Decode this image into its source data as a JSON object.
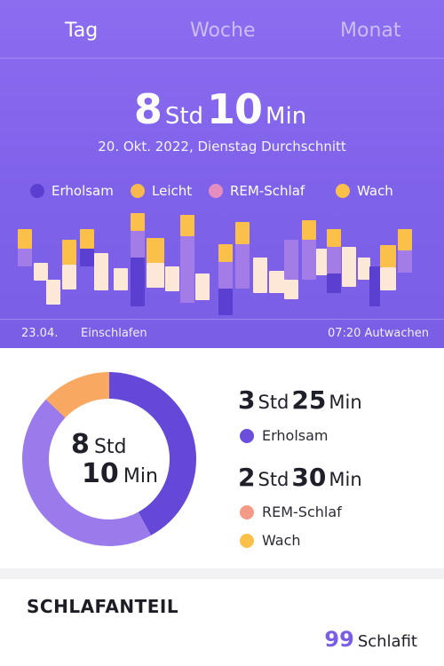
{
  "tabs": [
    {
      "label": "Tag",
      "active": true
    },
    {
      "label": "Woche",
      "active": false
    },
    {
      "label": "Monat",
      "active": false
    }
  ],
  "summary": {
    "hours": "8",
    "hours_unit": "Std",
    "minutes": "10",
    "minutes_unit": "Min",
    "subtitle": "20. Okt. 2022, Dienstag Durchschnitt"
  },
  "legend": [
    {
      "label": "Erholsam",
      "color": "#5b3fd0"
    },
    {
      "label": "Leicht",
      "color": "#f8b84e"
    },
    {
      "label": "REM-Schlaf",
      "color": "#e58dbf"
    },
    {
      "label": "Wach",
      "color": "#fbc04a"
    }
  ],
  "timeline": {
    "start_date": "23.04.",
    "start_label": "Einschlafen",
    "end_label": "07:20 Autwachen"
  },
  "colors": {
    "hero_bg": "#8368ec",
    "erholsam": "#5b3fd0",
    "mid": "#a47ce8",
    "leicht": "#fde7d6",
    "wach": "#fbc04a",
    "donut_purple": "#9b7aec",
    "donut_dark": "#6548d8",
    "donut_orange": "#f9a862",
    "rem": "#f59a86",
    "score": "#7a5ee6"
  },
  "donut": {
    "hours": "8",
    "hours_unit": "Std",
    "minutes": "10",
    "minutes_unit": "Min",
    "segments": [
      {
        "name": "Erholsam",
        "fraction": 0.42,
        "color": "#6548d8"
      },
      {
        "name": "Leicht",
        "fraction": 0.45,
        "color": "#9b7aec"
      },
      {
        "name": "Wach",
        "fraction": 0.13,
        "color": "#f9a862"
      }
    ]
  },
  "stats": [
    {
      "hours": "3",
      "hours_unit": "Std",
      "minutes": "25",
      "minutes_unit": "Min"
    },
    {
      "hours": "2",
      "hours_unit": "Std",
      "minutes": "30",
      "minutes_unit": "Min"
    }
  ],
  "breakdown": [
    {
      "label": "Erholsam",
      "color": "#6b4fdc"
    },
    {
      "label": "REM-Schlaf",
      "color": "#f59a86"
    },
    {
      "label": "Wach",
      "color": "#fbc04a"
    }
  ],
  "section": {
    "title": "SCHLAFANTEIL",
    "score": "99",
    "score_label": "Schlafit"
  }
}
